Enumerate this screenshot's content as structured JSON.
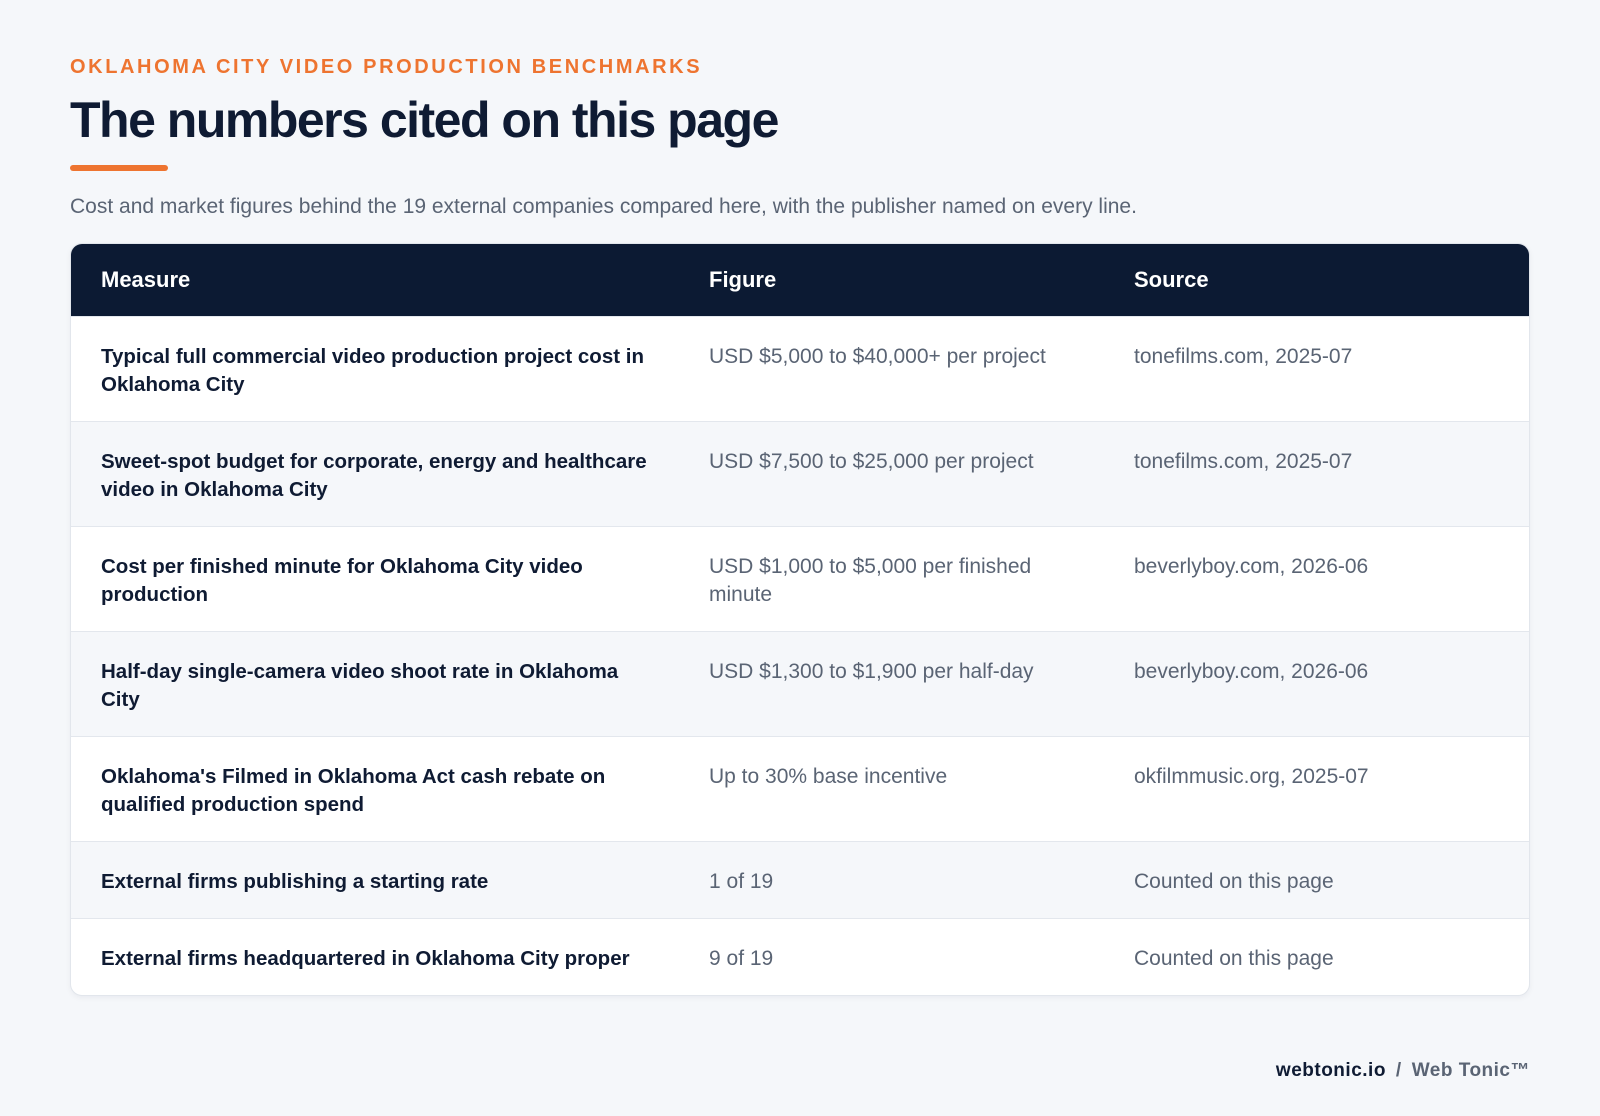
{
  "header": {
    "eyebrow": "OKLAHOMA CITY VIDEO PRODUCTION BENCHMARKS",
    "title": "The numbers cited on this page",
    "subtitle": "Cost and market figures behind the 19 external companies compared here, with the publisher named on every line."
  },
  "table": {
    "columns": [
      "Measure",
      "Figure",
      "Source"
    ],
    "rows": [
      [
        "Typical full commercial video production project cost in Oklahoma City",
        "USD $5,000 to $40,000+ per project",
        "tonefilms.com, 2025-07"
      ],
      [
        "Sweet-spot budget for corporate, energy and healthcare video in Oklahoma City",
        "USD $7,500 to $25,000 per project",
        "tonefilms.com, 2025-07"
      ],
      [
        "Cost per finished minute for Oklahoma City video production",
        "USD $1,000 to $5,000 per finished minute",
        "beverlyboy.com, 2026-06"
      ],
      [
        "Half-day single-camera video shoot rate in Oklahoma City",
        "USD $1,300 to $1,900 per half-day",
        "beverlyboy.com, 2026-06"
      ],
      [
        "Oklahoma's Filmed in Oklahoma Act cash rebate on qualified production spend",
        "Up to 30% base incentive",
        "okfilmmusic.org, 2025-07"
      ],
      [
        "External firms publishing a starting rate",
        "1 of 19",
        "Counted on this page"
      ],
      [
        "External firms headquartered in Oklahoma City proper",
        "9 of 19",
        "Counted on this page"
      ]
    ]
  },
  "footer": {
    "domain": "webtonic.io",
    "separator": "/",
    "brand": "Web Tonic™"
  }
}
